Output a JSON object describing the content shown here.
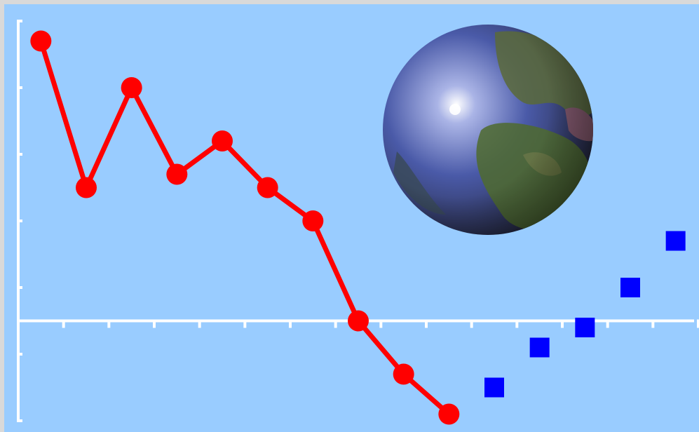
{
  "colors": {
    "background": "#99ccff",
    "frame": "#d9d9d9",
    "axis": "#ffffff",
    "line_series": "#ff0000",
    "square_series": "#0000ff"
  },
  "decoration": {
    "icon": "earth-globe-icon"
  },
  "chart_data": {
    "type": "line",
    "title": "",
    "xlabel": "",
    "ylabel": "",
    "grid": false,
    "legend": "none",
    "tick_labels": "none",
    "x_axis_crosses_y": 0,
    "xlim": [
      0.5,
      15.5
    ],
    "ylim": [
      -3,
      9
    ],
    "series": [
      {
        "marker": "circle",
        "style": "line",
        "x": [
          1,
          2,
          3,
          4,
          5,
          6,
          7,
          8,
          9,
          10
        ],
        "values": [
          8.4,
          4.0,
          7.0,
          4.4,
          5.4,
          4.0,
          3.0,
          0.0,
          -1.6,
          -2.8
        ]
      },
      {
        "marker": "square",
        "style": "markers",
        "x": [
          11,
          12,
          13,
          14,
          15
        ],
        "values": [
          -2.0,
          -0.8,
          -0.2,
          1.0,
          2.4
        ]
      }
    ]
  }
}
